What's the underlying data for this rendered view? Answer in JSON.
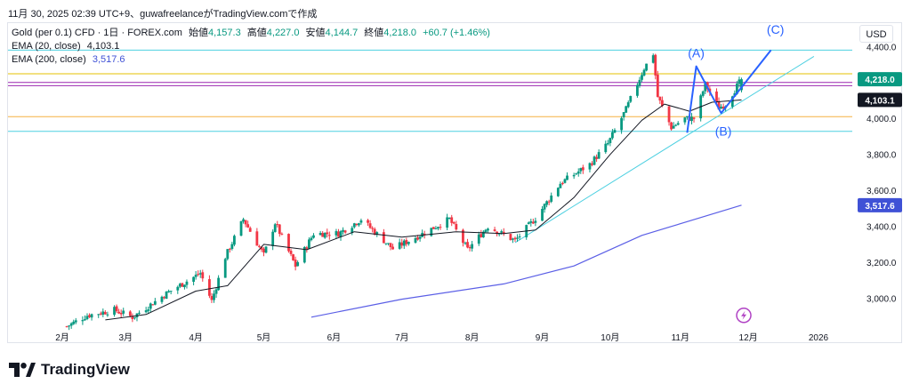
{
  "header": {
    "timestamp_line": "11月 30, 2025 02:39 UTC+9、guwafreelanceがTradingView.comで作成"
  },
  "legend": {
    "symbol": "Gold (per 0.1) CFD · 1日 · FOREX.com",
    "open_label": "始値",
    "open": "4,157.3",
    "high_label": "高値",
    "high": "4,227.0",
    "low_label": "安値",
    "low": "4,144.7",
    "close_label": "終値",
    "close": "4,218.0",
    "change": "+60.7 (+1.46%)",
    "ema20_label": "EMA (20, close)",
    "ema20_value": "4,103.1",
    "ema200_label": "EMA (200, close)",
    "ema200_value": "3,517.6"
  },
  "currency": "USD",
  "brand": {
    "name": "TradingView"
  },
  "colors": {
    "up": "#089981",
    "down": "#f23645",
    "ema20": "#131722",
    "ema200": "#5b5fe6",
    "wave": "#2962ff",
    "trendline": "#4dd0e1",
    "hline_cyan": "#4dd0e1",
    "hline_orange": "#f5b041",
    "hline_purple": "#9c27b0",
    "hline_gold": "#e6c200"
  },
  "chart_data": {
    "type": "candlestick",
    "ylim": [
      2820,
      4530
    ],
    "y_ticks": [
      {
        "value": 3000,
        "label": "3,000.0"
      },
      {
        "value": 3200,
        "label": "3,200.0"
      },
      {
        "value": 3400,
        "label": "3,400.0"
      },
      {
        "value": 3600,
        "label": "3,600.0"
      },
      {
        "value": 3800,
        "label": "3,800.0"
      },
      {
        "value": 4000,
        "label": "4,000.0"
      },
      {
        "value": 4400,
        "label": "4,400.0"
      }
    ],
    "x_ticks": [
      "2月",
      "3月",
      "4月",
      "5月",
      "6月",
      "7月",
      "8月",
      "9月",
      "10月",
      "11月",
      "12月",
      "2026"
    ],
    "price_badges": [
      {
        "value": 4218.0,
        "label": "4,218.0",
        "style": "up"
      },
      {
        "value": 4103.1,
        "label": "4,103.1",
        "style": "dark"
      },
      {
        "value": 3517.6,
        "label": "3,517.6",
        "style": "ema200"
      }
    ],
    "horizontal_lines": [
      {
        "value": 4380,
        "color": "hline_cyan"
      },
      {
        "value": 4248,
        "color": "hline_gold"
      },
      {
        "value": 4200,
        "color": "hline_purple"
      },
      {
        "value": 4182,
        "color": "hline_purple"
      },
      {
        "value": 4010,
        "color": "hline_orange"
      },
      {
        "value": 3928,
        "color": "hline_cyan"
      }
    ],
    "keypoints": [
      {
        "date": "2025-02-01",
        "price": 2830
      },
      {
        "date": "2025-02-12",
        "price": 2905
      },
      {
        "date": "2025-02-24",
        "price": 2935
      },
      {
        "date": "2025-03-04",
        "price": 2895
      },
      {
        "date": "2025-03-20",
        "price": 3035
      },
      {
        "date": "2025-04-03",
        "price": 3140
      },
      {
        "date": "2025-04-08",
        "price": 2985
      },
      {
        "date": "2025-04-14",
        "price": 3230
      },
      {
        "date": "2025-04-22",
        "price": 3440
      },
      {
        "date": "2025-05-01",
        "price": 3240
      },
      {
        "date": "2025-05-06",
        "price": 3420
      },
      {
        "date": "2025-05-15",
        "price": 3180
      },
      {
        "date": "2025-05-23",
        "price": 3360
      },
      {
        "date": "2025-06-03",
        "price": 3360
      },
      {
        "date": "2025-06-13",
        "price": 3440
      },
      {
        "date": "2025-06-27",
        "price": 3275
      },
      {
        "date": "2025-07-08",
        "price": 3345
      },
      {
        "date": "2025-07-22",
        "price": 3440
      },
      {
        "date": "2025-07-30",
        "price": 3270
      },
      {
        "date": "2025-08-08",
        "price": 3400
      },
      {
        "date": "2025-08-20",
        "price": 3320
      },
      {
        "date": "2025-08-29",
        "price": 3445
      },
      {
        "date": "2025-09-09",
        "price": 3640
      },
      {
        "date": "2025-09-22",
        "price": 3745
      },
      {
        "date": "2025-09-30",
        "price": 3860
      },
      {
        "date": "2025-10-08",
        "price": 4050
      },
      {
        "date": "2025-10-16",
        "price": 4280
      },
      {
        "date": "2025-10-20",
        "price": 4360
      },
      {
        "date": "2025-10-22",
        "price": 4120
      },
      {
        "date": "2025-10-28",
        "price": 3950
      },
      {
        "date": "2025-11-03",
        "price": 4000
      },
      {
        "date": "2025-11-07",
        "price": 4000
      },
      {
        "date": "2025-11-12",
        "price": 4190
      },
      {
        "date": "2025-11-18",
        "price": 4060
      },
      {
        "date": "2025-11-21",
        "price": 4080
      },
      {
        "date": "2025-11-28",
        "price": 4218
      }
    ],
    "ema20": [
      {
        "date": "2025-02-20",
        "price": 2880
      },
      {
        "date": "2025-03-10",
        "price": 2910
      },
      {
        "date": "2025-04-01",
        "price": 3040
      },
      {
        "date": "2025-04-15",
        "price": 3070
      },
      {
        "date": "2025-05-01",
        "price": 3300
      },
      {
        "date": "2025-05-20",
        "price": 3270
      },
      {
        "date": "2025-06-10",
        "price": 3370
      },
      {
        "date": "2025-07-01",
        "price": 3340
      },
      {
        "date": "2025-07-25",
        "price": 3370
      },
      {
        "date": "2025-08-15",
        "price": 3360
      },
      {
        "date": "2025-08-29",
        "price": 3380
      },
      {
        "date": "2025-09-15",
        "price": 3560
      },
      {
        "date": "2025-10-01",
        "price": 3800
      },
      {
        "date": "2025-10-15",
        "price": 3990
      },
      {
        "date": "2025-10-25",
        "price": 4080
      },
      {
        "date": "2025-11-05",
        "price": 4040
      },
      {
        "date": "2025-11-15",
        "price": 4090
      },
      {
        "date": "2025-11-28",
        "price": 4103.1
      }
    ],
    "ema200": [
      {
        "date": "2025-05-22",
        "price": 2895
      },
      {
        "date": "2025-07-01",
        "price": 2995
      },
      {
        "date": "2025-08-15",
        "price": 3080
      },
      {
        "date": "2025-09-15",
        "price": 3180
      },
      {
        "date": "2025-10-15",
        "price": 3350
      },
      {
        "date": "2025-11-28",
        "price": 3517.6
      }
    ],
    "trendline": [
      {
        "date": "2025-08-20",
        "price": 3310
      },
      {
        "date": "2025-12-30",
        "price": 4345
      }
    ],
    "elliott_wave": {
      "points": [
        {
          "date": "2025-11-04",
          "price": 3920
        },
        {
          "date": "2025-11-08",
          "price": 4290
        },
        {
          "date": "2025-11-19",
          "price": 4030
        },
        {
          "date": "2025-12-11",
          "price": 4380
        }
      ],
      "labels": [
        {
          "text": "(A)",
          "date": "2025-11-08",
          "price": 4340
        },
        {
          "text": "(B)",
          "date": "2025-11-20",
          "price": 3905
        },
        {
          "text": "(C)",
          "date": "2025-12-13",
          "price": 4470
        }
      ]
    }
  }
}
